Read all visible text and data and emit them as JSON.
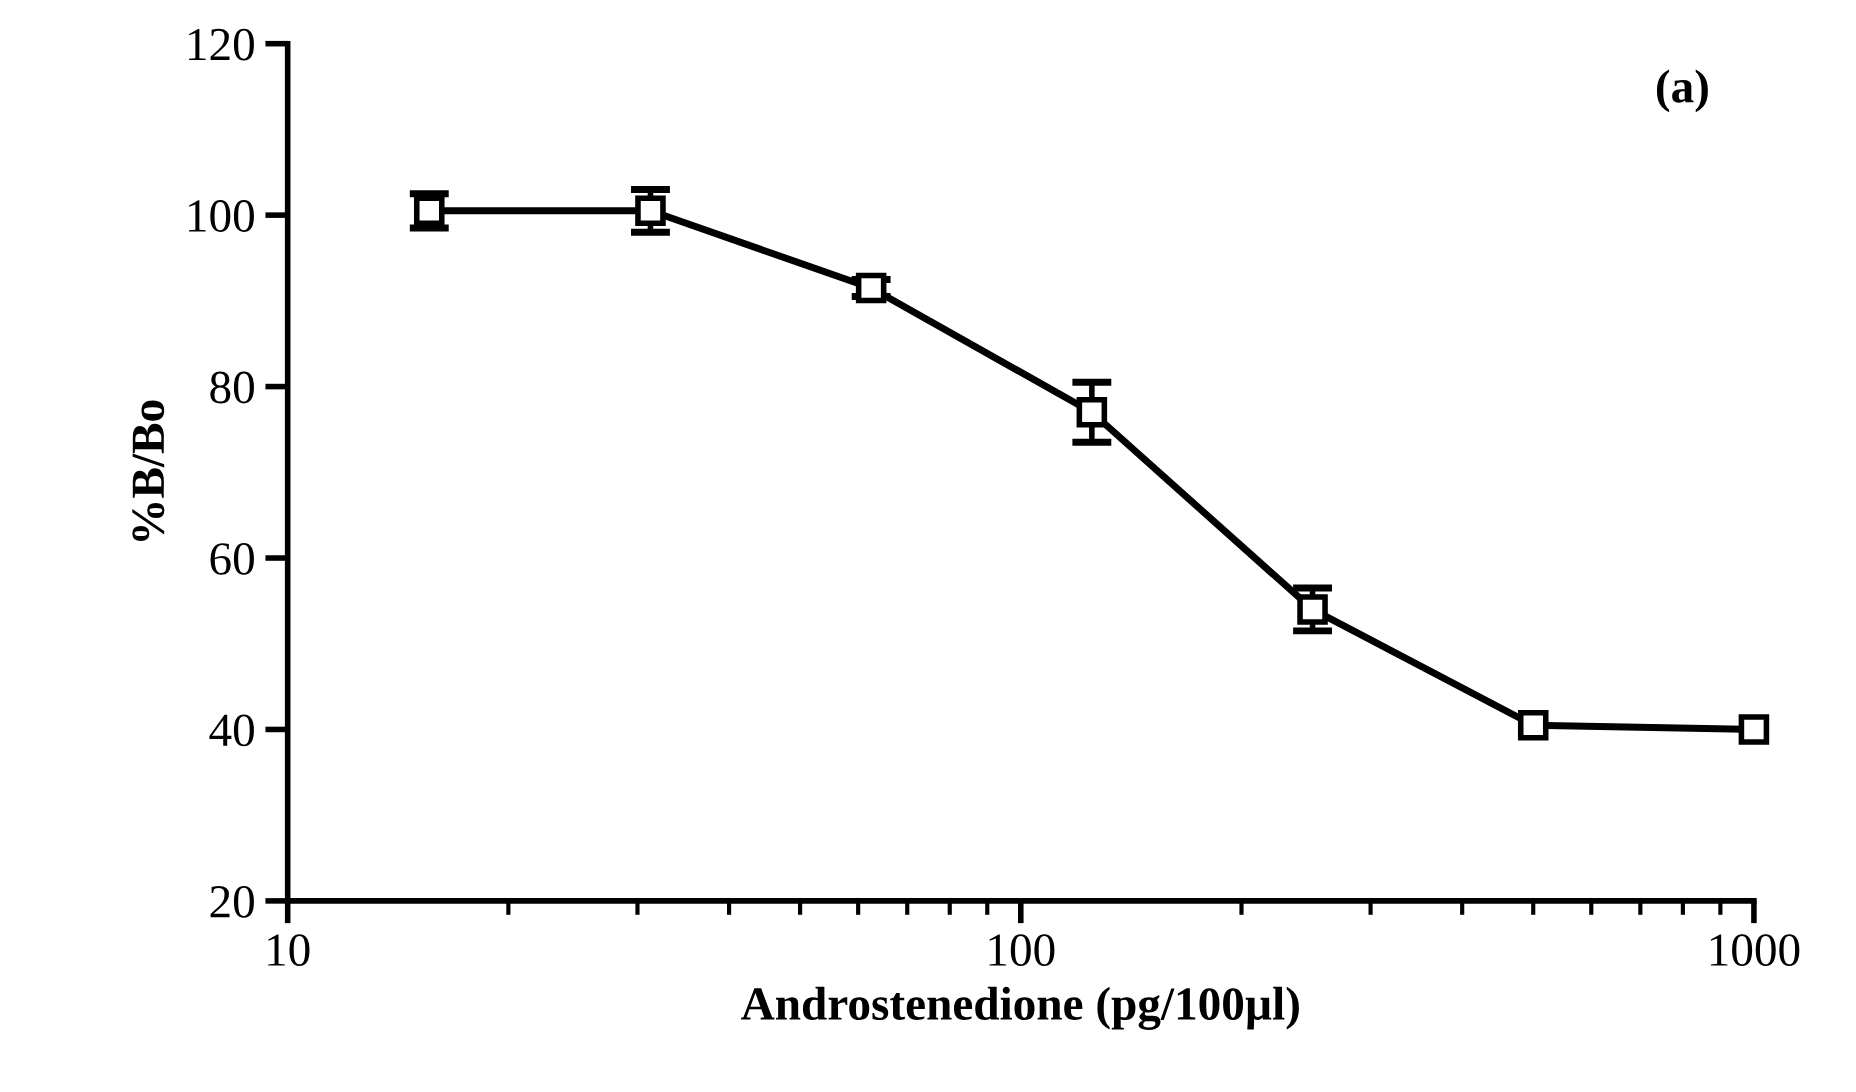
{
  "chart_data": {
    "type": "line",
    "xlabel": "Androstenedione (pg/100µl)",
    "ylabel": "%B/Bo",
    "annotations": [
      "(a)"
    ],
    "x": [
      15.6,
      31.25,
      62.5,
      125,
      250,
      500,
      1000
    ],
    "series": [
      {
        "color": "#000000",
        "values": [
          100.5,
          100.5,
          91.5,
          77,
          54,
          40.5,
          40
        ],
        "errors": [
          2,
          2.5,
          1,
          3.5,
          2.5,
          null,
          null
        ]
      }
    ],
    "log": "x",
    "xlim": [
      10,
      1000
    ],
    "xticks": [
      10,
      100,
      1000
    ],
    "ylim": [
      20,
      120
    ],
    "yticks": [
      20,
      40,
      60,
      80,
      100,
      120
    ],
    "grid": false,
    "legend": false,
    "marker": "square",
    "line_style": "solid"
  }
}
